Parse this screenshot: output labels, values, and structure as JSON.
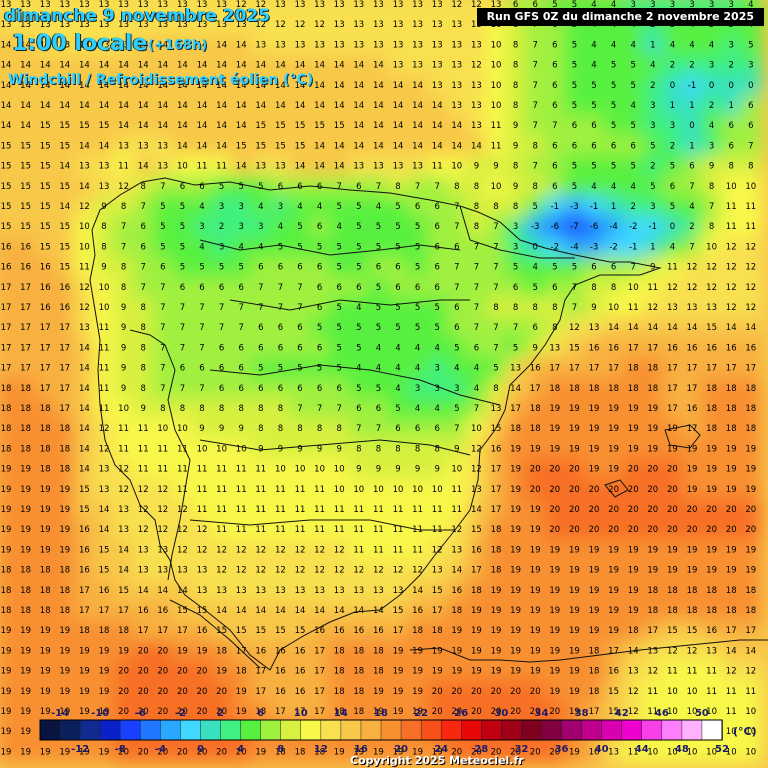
{
  "header": {
    "date": "dimanche 9 novembre 2025",
    "time": "1:00 locale",
    "lead": "(+168h)",
    "parameter": "Windchill / Refroidissement éolien (°C)",
    "run": "Run GFS 0Z du dimanche 2 novembre 2025"
  },
  "footer": {
    "copyright": "Copyright 2025 Meteociel.fr",
    "unit": "(°C)"
  },
  "legend": {
    "top_labels": [
      "-14",
      "-10",
      "-6",
      "-2",
      "2",
      "6",
      "10",
      "14",
      "18",
      "22",
      "26",
      "30",
      "34",
      "38",
      "42",
      "46",
      "50"
    ],
    "bottom_labels": [
      "-12",
      "-8",
      "-4",
      "0",
      "4",
      "8",
      "12",
      "16",
      "20",
      "24",
      "28",
      "32",
      "36",
      "40",
      "44",
      "48",
      "52"
    ],
    "colors": [
      "#0a1440",
      "#0c2060",
      "#102a90",
      "#0a20c8",
      "#1a40ff",
      "#1f78ff",
      "#2aa8ff",
      "#40d8ff",
      "#38e0c0",
      "#40f080",
      "#58f040",
      "#a0f040",
      "#d8f040",
      "#f8f848",
      "#f8e050",
      "#f8c848",
      "#f8b040",
      "#f89030",
      "#f87028",
      "#f85018",
      "#f82810",
      "#e80808",
      "#c00010",
      "#a00018",
      "#800020",
      "#800040",
      "#a00070",
      "#c0008c",
      "#d800b0",
      "#f000d0",
      "#f840e8",
      "#ff80ff",
      "#ffb0ff",
      "#ffffff"
    ]
  },
  "map_values": {
    "description_free": true,
    "rows": [
      [
        13,
        13,
        13,
        13,
        13,
        13,
        13,
        13,
        13,
        13,
        13,
        13,
        12,
        12,
        13,
        13,
        13,
        13,
        13,
        13,
        13,
        13,
        13,
        12,
        12,
        13,
        6,
        6,
        5,
        5,
        4,
        4,
        3,
        3,
        3,
        3,
        3,
        3,
        4
      ],
      [
        13,
        13,
        13,
        13,
        13,
        13,
        13,
        13,
        13,
        13,
        13,
        13,
        13,
        12,
        12,
        12,
        12,
        13,
        13,
        13,
        13,
        13,
        13,
        13,
        13,
        10,
        8,
        7,
        6,
        5,
        4,
        4,
        4,
        2,
        5,
        4,
        5,
        5,
        4
      ],
      [
        14,
        14,
        13,
        13,
        13,
        13,
        13,
        14,
        14,
        14,
        14,
        14,
        14,
        13,
        13,
        13,
        13,
        13,
        13,
        13,
        13,
        13,
        13,
        13,
        13,
        10,
        8,
        7,
        6,
        5,
        4,
        4,
        4,
        1,
        4,
        4,
        4,
        3,
        5
      ],
      [
        14,
        14,
        14,
        14,
        14,
        14,
        14,
        14,
        14,
        14,
        14,
        14,
        14,
        14,
        14,
        14,
        14,
        14,
        14,
        14,
        13,
        13,
        13,
        13,
        12,
        10,
        8,
        7,
        6,
        5,
        4,
        5,
        5,
        4,
        2,
        2,
        3,
        2,
        3
      ],
      [
        14,
        14,
        14,
        14,
        14,
        14,
        14,
        14,
        14,
        14,
        14,
        14,
        14,
        14,
        14,
        14,
        14,
        14,
        14,
        14,
        14,
        14,
        13,
        13,
        13,
        10,
        8,
        7,
        6,
        5,
        5,
        5,
        5,
        2,
        0,
        -1,
        0,
        0,
        0
      ],
      [
        14,
        14,
        14,
        14,
        14,
        14,
        14,
        14,
        14,
        14,
        14,
        14,
        14,
        14,
        14,
        14,
        14,
        14,
        14,
        14,
        14,
        14,
        14,
        13,
        13,
        10,
        8,
        7,
        6,
        5,
        5,
        5,
        4,
        3,
        1,
        1,
        2,
        1,
        6
      ],
      [
        14,
        14,
        15,
        15,
        15,
        15,
        14,
        14,
        14,
        14,
        14,
        14,
        14,
        15,
        15,
        15,
        15,
        15,
        14,
        14,
        14,
        14,
        14,
        14,
        13,
        11,
        9,
        7,
        7,
        6,
        6,
        5,
        5,
        3,
        3,
        0,
        4,
        6,
        6
      ],
      [
        15,
        15,
        15,
        15,
        14,
        14,
        13,
        13,
        13,
        14,
        14,
        14,
        15,
        15,
        15,
        15,
        14,
        14,
        14,
        14,
        14,
        14,
        14,
        14,
        14,
        11,
        9,
        8,
        6,
        6,
        6,
        6,
        6,
        5,
        2,
        1,
        3,
        6,
        7
      ],
      [
        15,
        15,
        15,
        14,
        13,
        13,
        11,
        14,
        13,
        10,
        11,
        11,
        14,
        13,
        13,
        14,
        14,
        14,
        13,
        13,
        13,
        13,
        11,
        10,
        9,
        9,
        8,
        7,
        6,
        5,
        5,
        5,
        5,
        2,
        5,
        6,
        9,
        8,
        8
      ],
      [
        15,
        15,
        15,
        15,
        14,
        13,
        12,
        8,
        7,
        6,
        6,
        5,
        5,
        5,
        6,
        6,
        6,
        7,
        6,
        7,
        8,
        7,
        7,
        8,
        8,
        10,
        9,
        8,
        6,
        5,
        4,
        4,
        4,
        5,
        6,
        7,
        8,
        10,
        10
      ],
      [
        15,
        15,
        15,
        14,
        12,
        9,
        8,
        7,
        5,
        5,
        4,
        3,
        3,
        4,
        3,
        4,
        4,
        5,
        5,
        4,
        5,
        6,
        6,
        7,
        8,
        8,
        8,
        5,
        -1,
        -3,
        -1,
        1,
        2,
        3,
        5,
        4,
        7,
        11,
        11
      ],
      [
        15,
        15,
        15,
        15,
        10,
        8,
        7,
        6,
        5,
        5,
        3,
        2,
        3,
        3,
        4,
        5,
        6,
        4,
        5,
        5,
        5,
        5,
        6,
        7,
        8,
        7,
        3,
        -3,
        -6,
        -7,
        -6,
        -4,
        -2,
        -1,
        0,
        2,
        8,
        11,
        11
      ],
      [
        16,
        16,
        15,
        15,
        10,
        8,
        7,
        6,
        5,
        5,
        4,
        3,
        4,
        4,
        5,
        5,
        5,
        5,
        5,
        5,
        5,
        5,
        6,
        6,
        7,
        7,
        3,
        0,
        -2,
        -4,
        -3,
        -2,
        -1,
        1,
        4,
        7,
        10,
        12,
        12
      ],
      [
        16,
        16,
        16,
        15,
        11,
        9,
        8,
        7,
        6,
        5,
        5,
        5,
        5,
        6,
        6,
        6,
        6,
        5,
        5,
        6,
        6,
        5,
        6,
        7,
        7,
        7,
        5,
        4,
        5,
        5,
        6,
        6,
        7,
        9,
        11,
        12,
        12,
        12,
        12
      ],
      [
        17,
        17,
        16,
        16,
        12,
        10,
        8,
        7,
        7,
        6,
        6,
        6,
        6,
        7,
        7,
        7,
        6,
        6,
        6,
        5,
        6,
        6,
        6,
        7,
        7,
        7,
        6,
        5,
        6,
        7,
        8,
        8,
        10,
        11,
        12,
        12,
        12,
        12,
        12
      ],
      [
        17,
        17,
        16,
        16,
        12,
        10,
        9,
        8,
        7,
        7,
        7,
        7,
        7,
        7,
        7,
        7,
        6,
        5,
        4,
        5,
        5,
        5,
        5,
        6,
        7,
        8,
        8,
        8,
        8,
        7,
        9,
        10,
        11,
        12,
        13,
        13,
        13,
        12,
        12
      ],
      [
        17,
        17,
        17,
        17,
        13,
        11,
        9,
        8,
        7,
        7,
        7,
        7,
        7,
        6,
        6,
        6,
        5,
        5,
        5,
        5,
        5,
        5,
        5,
        6,
        7,
        7,
        7,
        6,
        8,
        12,
        13,
        14,
        14,
        14,
        14,
        14,
        15,
        14,
        14
      ],
      [
        17,
        17,
        17,
        17,
        14,
        11,
        9,
        8,
        7,
        7,
        7,
        6,
        6,
        6,
        6,
        6,
        6,
        5,
        5,
        4,
        4,
        4,
        4,
        5,
        6,
        7,
        5,
        9,
        13,
        15,
        16,
        16,
        17,
        17,
        16,
        16,
        16,
        16,
        16
      ],
      [
        17,
        17,
        17,
        17,
        14,
        11,
        9,
        8,
        7,
        6,
        6,
        6,
        6,
        5,
        5,
        5,
        5,
        5,
        4,
        4,
        4,
        4,
        3,
        4,
        4,
        5,
        13,
        16,
        17,
        17,
        17,
        17,
        18,
        18,
        17,
        17,
        17,
        17,
        17
      ],
      [
        18,
        18,
        17,
        17,
        14,
        11,
        9,
        8,
        7,
        7,
        7,
        6,
        6,
        6,
        6,
        6,
        6,
        6,
        5,
        5,
        4,
        3,
        3,
        3,
        4,
        8,
        14,
        17,
        18,
        18,
        18,
        18,
        18,
        18,
        17,
        17,
        18,
        18,
        18
      ],
      [
        18,
        18,
        18,
        17,
        14,
        11,
        10,
        9,
        8,
        8,
        8,
        8,
        8,
        8,
        8,
        7,
        7,
        7,
        6,
        6,
        5,
        4,
        4,
        5,
        7,
        13,
        17,
        18,
        19,
        19,
        19,
        19,
        19,
        19,
        17,
        16,
        18,
        18,
        18
      ],
      [
        18,
        18,
        18,
        18,
        14,
        12,
        11,
        11,
        10,
        10,
        9,
        9,
        9,
        8,
        8,
        8,
        8,
        8,
        7,
        7,
        6,
        6,
        6,
        7,
        10,
        15,
        18,
        18,
        19,
        19,
        19,
        19,
        19,
        19,
        19,
        17,
        18,
        18,
        18
      ],
      [
        18,
        18,
        18,
        18,
        14,
        12,
        11,
        11,
        11,
        11,
        10,
        10,
        10,
        9,
        9,
        9,
        9,
        9,
        8,
        8,
        8,
        8,
        8,
        9,
        12,
        16,
        19,
        19,
        19,
        19,
        19,
        19,
        19,
        19,
        19,
        19,
        19,
        19,
        19
      ],
      [
        19,
        19,
        18,
        18,
        14,
        13,
        12,
        11,
        11,
        11,
        11,
        11,
        11,
        11,
        10,
        10,
        10,
        10,
        9,
        9,
        9,
        9,
        9,
        10,
        12,
        17,
        19,
        20,
        20,
        20,
        19,
        19,
        20,
        20,
        20,
        19,
        19,
        19,
        19
      ],
      [
        19,
        19,
        19,
        19,
        15,
        13,
        12,
        12,
        12,
        11,
        11,
        11,
        11,
        11,
        11,
        11,
        11,
        10,
        10,
        10,
        10,
        10,
        10,
        11,
        13,
        17,
        19,
        20,
        20,
        20,
        20,
        20,
        20,
        20,
        20,
        19,
        19,
        19,
        19
      ],
      [
        19,
        19,
        19,
        19,
        15,
        14,
        13,
        12,
        12,
        12,
        11,
        11,
        11,
        11,
        11,
        11,
        11,
        11,
        11,
        11,
        11,
        11,
        11,
        11,
        14,
        17,
        19,
        19,
        20,
        20,
        20,
        20,
        20,
        20,
        20,
        20,
        20,
        20,
        20
      ],
      [
        19,
        19,
        19,
        19,
        16,
        14,
        13,
        12,
        12,
        12,
        12,
        11,
        11,
        11,
        11,
        11,
        11,
        11,
        11,
        11,
        11,
        11,
        11,
        12,
        15,
        18,
        19,
        19,
        20,
        20,
        20,
        20,
        20,
        20,
        20,
        20,
        20,
        20,
        20
      ],
      [
        19,
        19,
        19,
        19,
        16,
        15,
        14,
        13,
        13,
        12,
        12,
        12,
        12,
        12,
        12,
        12,
        12,
        12,
        11,
        11,
        11,
        11,
        12,
        13,
        16,
        18,
        19,
        19,
        19,
        19,
        19,
        19,
        19,
        19,
        19,
        19,
        19,
        19,
        19
      ],
      [
        18,
        18,
        18,
        18,
        16,
        15,
        14,
        13,
        13,
        13,
        13,
        12,
        12,
        12,
        12,
        12,
        12,
        12,
        12,
        12,
        12,
        12,
        13,
        14,
        17,
        18,
        19,
        19,
        19,
        19,
        19,
        19,
        19,
        19,
        19,
        19,
        19,
        19,
        19
      ],
      [
        18,
        18,
        18,
        18,
        17,
        16,
        15,
        14,
        14,
        14,
        13,
        13,
        13,
        13,
        13,
        13,
        13,
        13,
        13,
        13,
        13,
        14,
        15,
        16,
        18,
        19,
        19,
        19,
        19,
        19,
        19,
        19,
        19,
        18,
        18,
        18,
        18,
        18,
        18
      ],
      [
        18,
        18,
        18,
        18,
        17,
        17,
        17,
        16,
        16,
        15,
        15,
        14,
        14,
        14,
        14,
        14,
        14,
        14,
        14,
        14,
        15,
        16,
        17,
        18,
        19,
        19,
        19,
        19,
        19,
        19,
        19,
        19,
        19,
        18,
        18,
        18,
        18,
        18,
        18
      ],
      [
        19,
        19,
        19,
        19,
        18,
        18,
        18,
        17,
        17,
        17,
        16,
        15,
        15,
        15,
        15,
        15,
        16,
        16,
        16,
        16,
        17,
        18,
        18,
        19,
        19,
        19,
        19,
        19,
        19,
        19,
        19,
        19,
        18,
        17,
        15,
        15,
        16,
        17,
        17
      ],
      [
        19,
        19,
        19,
        19,
        19,
        19,
        19,
        20,
        20,
        19,
        19,
        18,
        17,
        16,
        16,
        16,
        17,
        18,
        18,
        18,
        19,
        19,
        19,
        19,
        19,
        19,
        19,
        19,
        19,
        19,
        18,
        17,
        14,
        13,
        12,
        12,
        13,
        14,
        14
      ],
      [
        19,
        19,
        19,
        19,
        19,
        19,
        20,
        20,
        20,
        20,
        20,
        19,
        18,
        17,
        16,
        16,
        17,
        18,
        18,
        18,
        19,
        19,
        19,
        19,
        19,
        19,
        19,
        19,
        19,
        19,
        18,
        16,
        13,
        12,
        11,
        11,
        11,
        12,
        12
      ],
      [
        19,
        19,
        19,
        19,
        19,
        19,
        20,
        20,
        20,
        20,
        20,
        20,
        19,
        17,
        16,
        16,
        17,
        18,
        18,
        19,
        19,
        19,
        20,
        20,
        20,
        20,
        20,
        20,
        19,
        19,
        18,
        15,
        12,
        11,
        10,
        10,
        11,
        11,
        11
      ],
      [
        19,
        19,
        19,
        19,
        19,
        19,
        20,
        20,
        20,
        20,
        20,
        20,
        19,
        18,
        17,
        17,
        17,
        18,
        18,
        19,
        19,
        19,
        20,
        20,
        20,
        20,
        20,
        20,
        20,
        19,
        17,
        15,
        12,
        11,
        10,
        10,
        10,
        11,
        10
      ],
      [
        19,
        19,
        19,
        19,
        19,
        19,
        20,
        20,
        20,
        20,
        20,
        20,
        20,
        19,
        18,
        18,
        18,
        18,
        19,
        19,
        19,
        19,
        20,
        20,
        20,
        20,
        20,
        20,
        20,
        19,
        17,
        14,
        12,
        11,
        10,
        10,
        10,
        10,
        10
      ],
      [
        19,
        19,
        19,
        19,
        19,
        19,
        20,
        20,
        20,
        20,
        20,
        20,
        20,
        19,
        18,
        18,
        18,
        19,
        19,
        19,
        19,
        19,
        19,
        20,
        20,
        20,
        20,
        20,
        20,
        19,
        16,
        13,
        11,
        10,
        10,
        10,
        10,
        10,
        10
      ]
    ]
  }
}
